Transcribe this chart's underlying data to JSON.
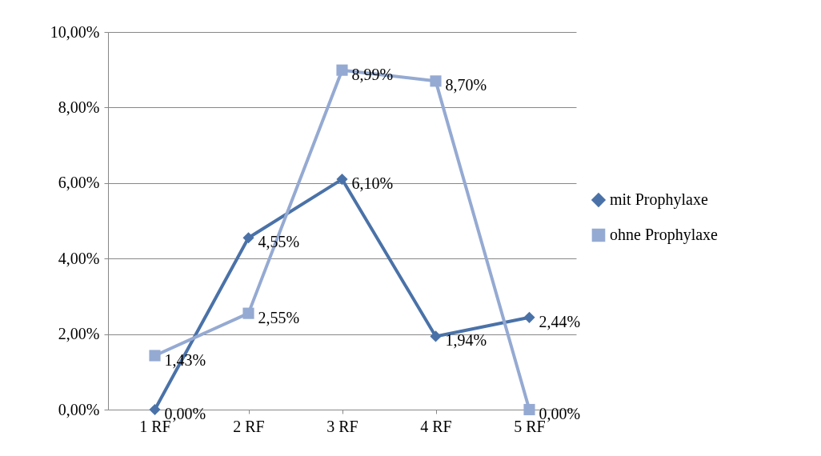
{
  "chart_data": {
    "type": "line",
    "categories": [
      "1 RF",
      "2 RF",
      "3 RF",
      "4 RF",
      "5 RF"
    ],
    "series": [
      {
        "name": "mit Prophylaxe",
        "color": "#4a72a8",
        "marker": "diamond",
        "values": [
          0,
          4.55,
          6.1,
          1.94,
          2.44
        ],
        "value_labels": [
          "0,00%",
          "4,55%",
          "6,10%",
          "1,94%",
          "2,44%"
        ]
      },
      {
        "name": "ohne Prophylaxe",
        "color": "#95aad2",
        "marker": "square",
        "values": [
          1.43,
          2.55,
          8.99,
          8.7,
          0
        ],
        "value_labels": [
          "1,43%",
          "2,55%",
          "8,99%",
          "8,70%",
          "0,00%"
        ]
      }
    ],
    "ylim": [
      0,
      10
    ],
    "yticks": [
      {
        "value": 0,
        "label": "0,00%"
      },
      {
        "value": 2,
        "label": "2,00%"
      },
      {
        "value": 4,
        "label": "4,00%"
      },
      {
        "value": 6,
        "label": "6,00%"
      },
      {
        "value": 8,
        "label": "8,00%"
      },
      {
        "value": 10,
        "label": "10,00%"
      }
    ],
    "grid": "y",
    "legend": "right",
    "line_style": "solid"
  }
}
